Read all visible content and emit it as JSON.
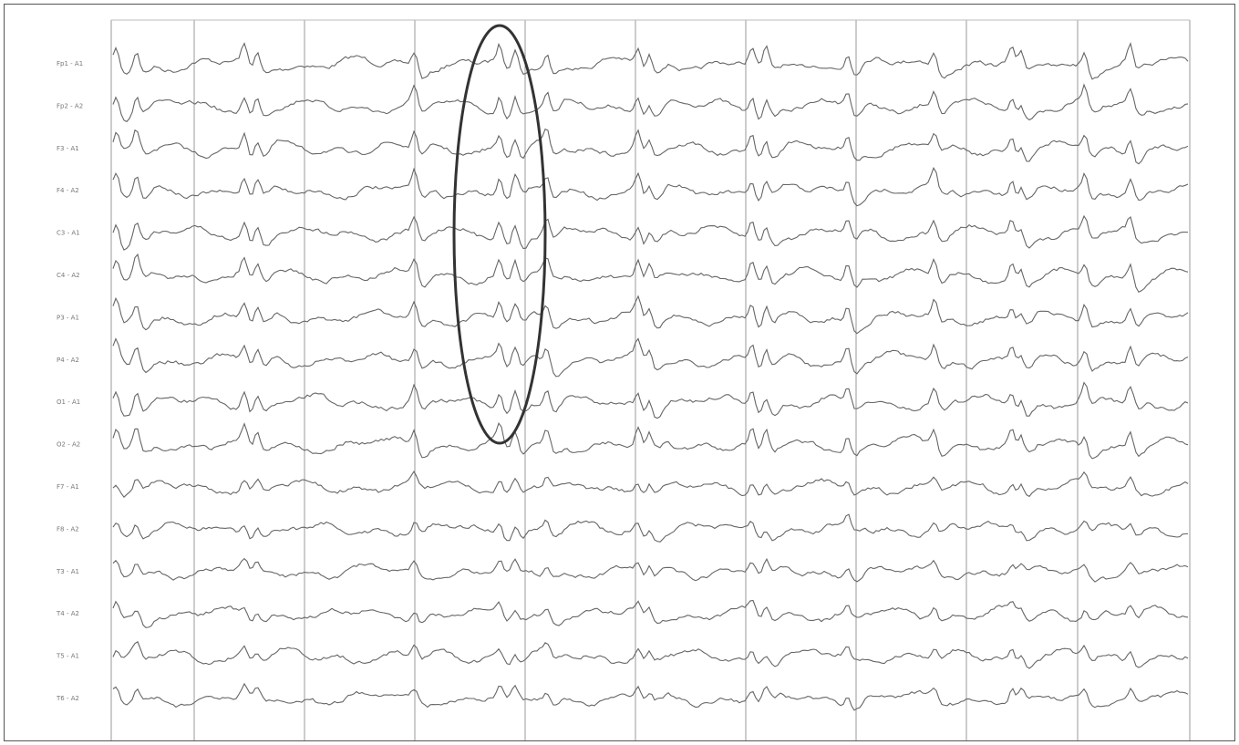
{
  "channels": [
    "Fp1 - A1",
    "Fp2 - A2",
    "F3 - A1",
    "F4 - A2",
    "C3 - A1",
    "C4 - A2",
    "P3 - A1",
    "P4 - A2",
    "O1 - A1",
    "O2 - A2",
    "F7 - A1",
    "F8 - A2",
    "T3 - A1",
    "T4 - A2",
    "T5 - A1",
    "T6 - A2"
  ]
}
